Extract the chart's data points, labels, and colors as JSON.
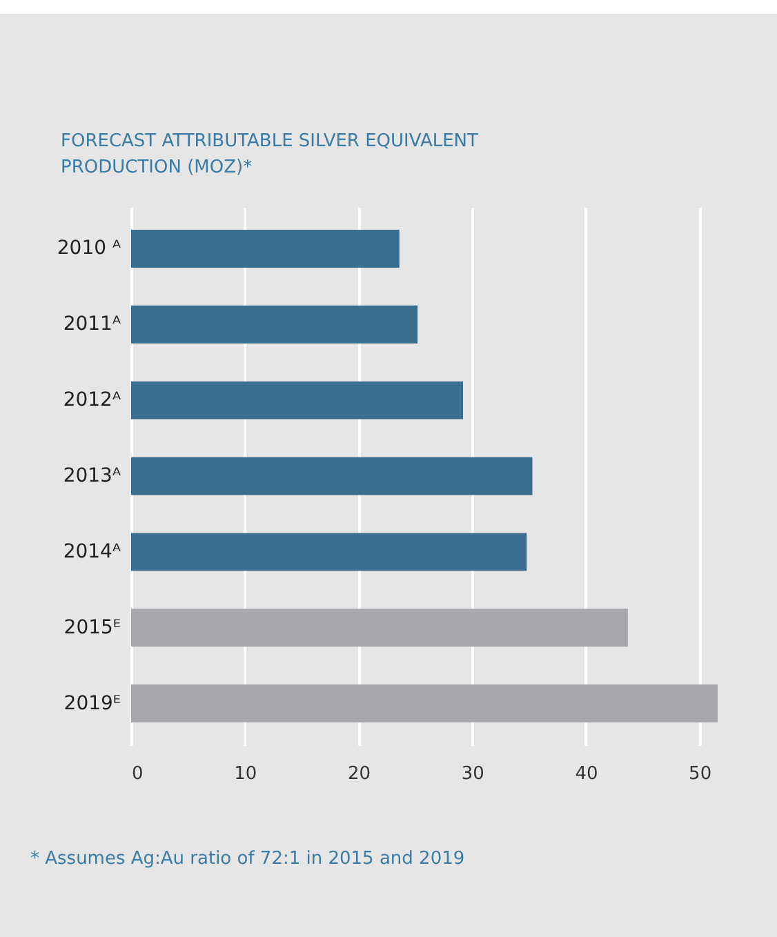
{
  "chart_data": {
    "type": "bar",
    "orientation": "horizontal",
    "title": "FORECAST ATTRIBUTABLE SILVER EQUIVALENT PRODUCTION (MOZ)*",
    "categories": [
      "2010 ᴬ",
      "2011ᴬ",
      "2012ᴬ",
      "2013ᴬ",
      "2014ᴬ",
      "2015ᴱ",
      "2019ᴱ"
    ],
    "values": [
      23.6,
      25.2,
      29.2,
      35.3,
      34.8,
      43.7,
      51.6
    ],
    "colors": [
      "#3c6e8f",
      "#3c6e8f",
      "#3c6e8f",
      "#3c6e8f",
      "#3c6e8f",
      "#a7a8ac",
      "#a7a8ac"
    ],
    "xlim": [
      0,
      51.6
    ],
    "xticks": [
      0,
      10,
      20,
      30,
      40,
      50
    ],
    "grid": "x",
    "annotations": [
      "*  Assumes Ag:Au ratio of 72:1 in 2015 and 2019"
    ]
  }
}
